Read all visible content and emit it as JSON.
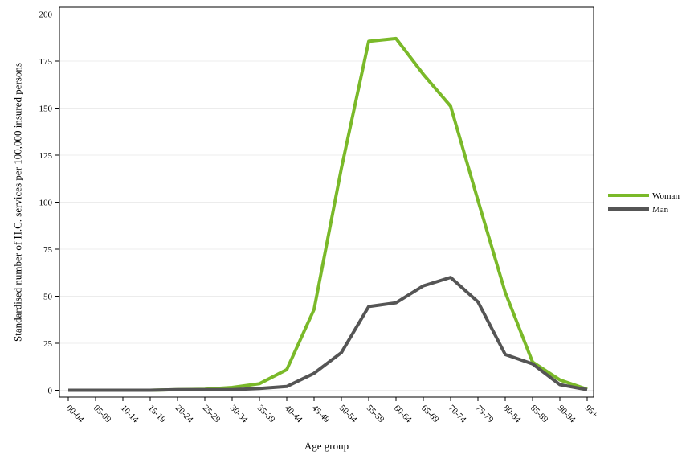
{
  "chart_data": {
    "type": "line",
    "title": "",
    "xlabel": "Age group",
    "ylabel": "Standardised number of H.C. services per 100,000 insured persons",
    "ylim": [
      0,
      200
    ],
    "yticks": [
      0,
      25,
      50,
      75,
      100,
      125,
      150,
      175,
      200
    ],
    "grid": true,
    "legend_position": "right",
    "categories": [
      "00-04",
      "05-09",
      "10-14",
      "15-19",
      "20-24",
      "25-29",
      "30-34",
      "35-39",
      "40-44",
      "45-49",
      "50-54",
      "55-59",
      "60-64",
      "65-69",
      "70-74",
      "75-79",
      "80-84",
      "85-89",
      "90-94",
      "95+"
    ],
    "series": [
      {
        "name": "Woman",
        "color": "#7ab929",
        "values": [
          0,
          0,
          0,
          0,
          0.3,
          0.5,
          1.5,
          3.5,
          11,
          43,
          118,
          185.5,
          187,
          168,
          151,
          101,
          52,
          15,
          5.5,
          0.5
        ]
      },
      {
        "name": "Man",
        "color": "#555555",
        "values": [
          0,
          0,
          0,
          0,
          0.3,
          0.3,
          0.3,
          1,
          2,
          9,
          20,
          44.5,
          46.5,
          55.5,
          60,
          47,
          19,
          14,
          3,
          0.3
        ]
      }
    ]
  }
}
